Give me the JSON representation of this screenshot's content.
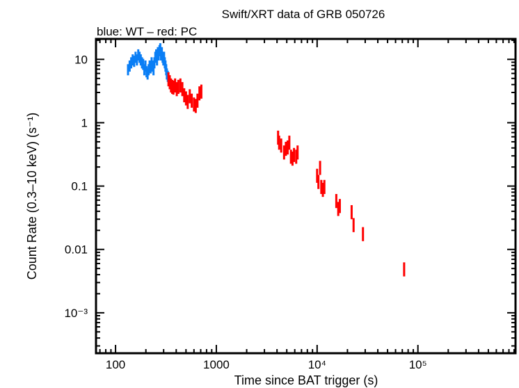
{
  "chart_data": {
    "type": "scatter",
    "title": "Swift/XRT data of GRB 050726",
    "subtitle": "blue: WT – red: PC",
    "xlabel": "Time since BAT trigger (s)",
    "ylabel": "Count Rate (0.3–10 keV) (s⁻¹)",
    "x_scale": "log",
    "y_scale": "log",
    "xlim": [
      64,
      930000
    ],
    "ylim": [
      0.00023,
      21
    ],
    "grid": false,
    "x_ticks": [
      {
        "value": 100,
        "label": "100"
      },
      {
        "value": 1000,
        "label": "1000"
      },
      {
        "value": 10000,
        "label": "10⁴"
      },
      {
        "value": 100000,
        "label": "10⁵"
      }
    ],
    "y_ticks": [
      {
        "value": 10,
        "label": "10"
      },
      {
        "value": 1,
        "label": "1"
      },
      {
        "value": 0.1,
        "label": "0.1"
      },
      {
        "value": 0.01,
        "label": "0.01"
      },
      {
        "value": 0.001,
        "label": "10⁻³"
      }
    ],
    "series": [
      {
        "name": "WT",
        "color": "#0a7ef5",
        "relerr": 0.2,
        "points": [
          [
            133,
            7
          ],
          [
            138,
            8
          ],
          [
            143,
            9
          ],
          [
            148,
            10
          ],
          [
            153,
            9.5
          ],
          [
            158,
            11
          ],
          [
            163,
            10
          ],
          [
            168,
            12
          ],
          [
            173,
            11
          ],
          [
            178,
            10
          ],
          [
            183,
            9
          ],
          [
            188,
            8.5
          ],
          [
            193,
            7
          ],
          [
            198,
            8
          ],
          [
            203,
            6.5
          ],
          [
            208,
            6
          ],
          [
            213,
            7
          ],
          [
            218,
            8
          ],
          [
            223,
            7.5
          ],
          [
            228,
            9
          ],
          [
            233,
            8
          ],
          [
            238,
            7
          ],
          [
            243,
            9
          ],
          [
            248,
            11
          ],
          [
            253,
            12
          ],
          [
            258,
            10
          ],
          [
            263,
            13
          ],
          [
            268,
            12
          ],
          [
            273,
            14
          ],
          [
            278,
            15
          ],
          [
            283,
            12
          ],
          [
            288,
            13
          ],
          [
            293,
            11
          ],
          [
            298,
            10
          ],
          [
            303,
            11
          ],
          [
            308,
            9
          ],
          [
            313,
            8
          ],
          [
            318,
            7
          ],
          [
            323,
            6
          ],
          [
            330,
            5.5
          ]
        ]
      },
      {
        "name": "PC",
        "color": "#ff0000",
        "relerr": 0.25,
        "points": [
          [
            335,
            5
          ],
          [
            345,
            4.5
          ],
          [
            355,
            4
          ],
          [
            365,
            3.8
          ],
          [
            375,
            3.7
          ],
          [
            390,
            4
          ],
          [
            405,
            3.5
          ],
          [
            420,
            3.8
          ],
          [
            440,
            4
          ],
          [
            460,
            3.5
          ],
          [
            480,
            2.8
          ],
          [
            500,
            2.5
          ],
          [
            520,
            2.2
          ],
          [
            545,
            2.7
          ],
          [
            570,
            2.3
          ],
          [
            600,
            2
          ],
          [
            625,
            1.9
          ],
          [
            650,
            2.3
          ],
          [
            680,
            3
          ],
          [
            710,
            3.2
          ],
          [
            4100,
            0.6
          ],
          [
            4200,
            0.5
          ],
          [
            4400,
            0.45
          ],
          [
            4700,
            0.35
          ],
          [
            4900,
            0.4
          ],
          [
            5100,
            0.42
          ],
          [
            5300,
            0.5
          ],
          [
            5500,
            0.3
          ],
          [
            5700,
            0.28
          ],
          [
            5900,
            0.32
          ],
          [
            6200,
            0.3
          ],
          [
            6400,
            0.35
          ],
          [
            10000,
            0.15
          ],
          [
            10300,
            0.12
          ],
          [
            10700,
            0.2
          ],
          [
            11000,
            0.1
          ],
          [
            11400,
            0.09
          ],
          [
            11800,
            0.1
          ],
          [
            15500,
            0.06
          ],
          [
            16200,
            0.045
          ],
          [
            16800,
            0.05
          ],
          [
            22000,
            0.04
          ],
          [
            23000,
            0.025
          ],
          [
            28500,
            0.018
          ],
          [
            73000,
            0.005
          ]
        ]
      }
    ]
  }
}
